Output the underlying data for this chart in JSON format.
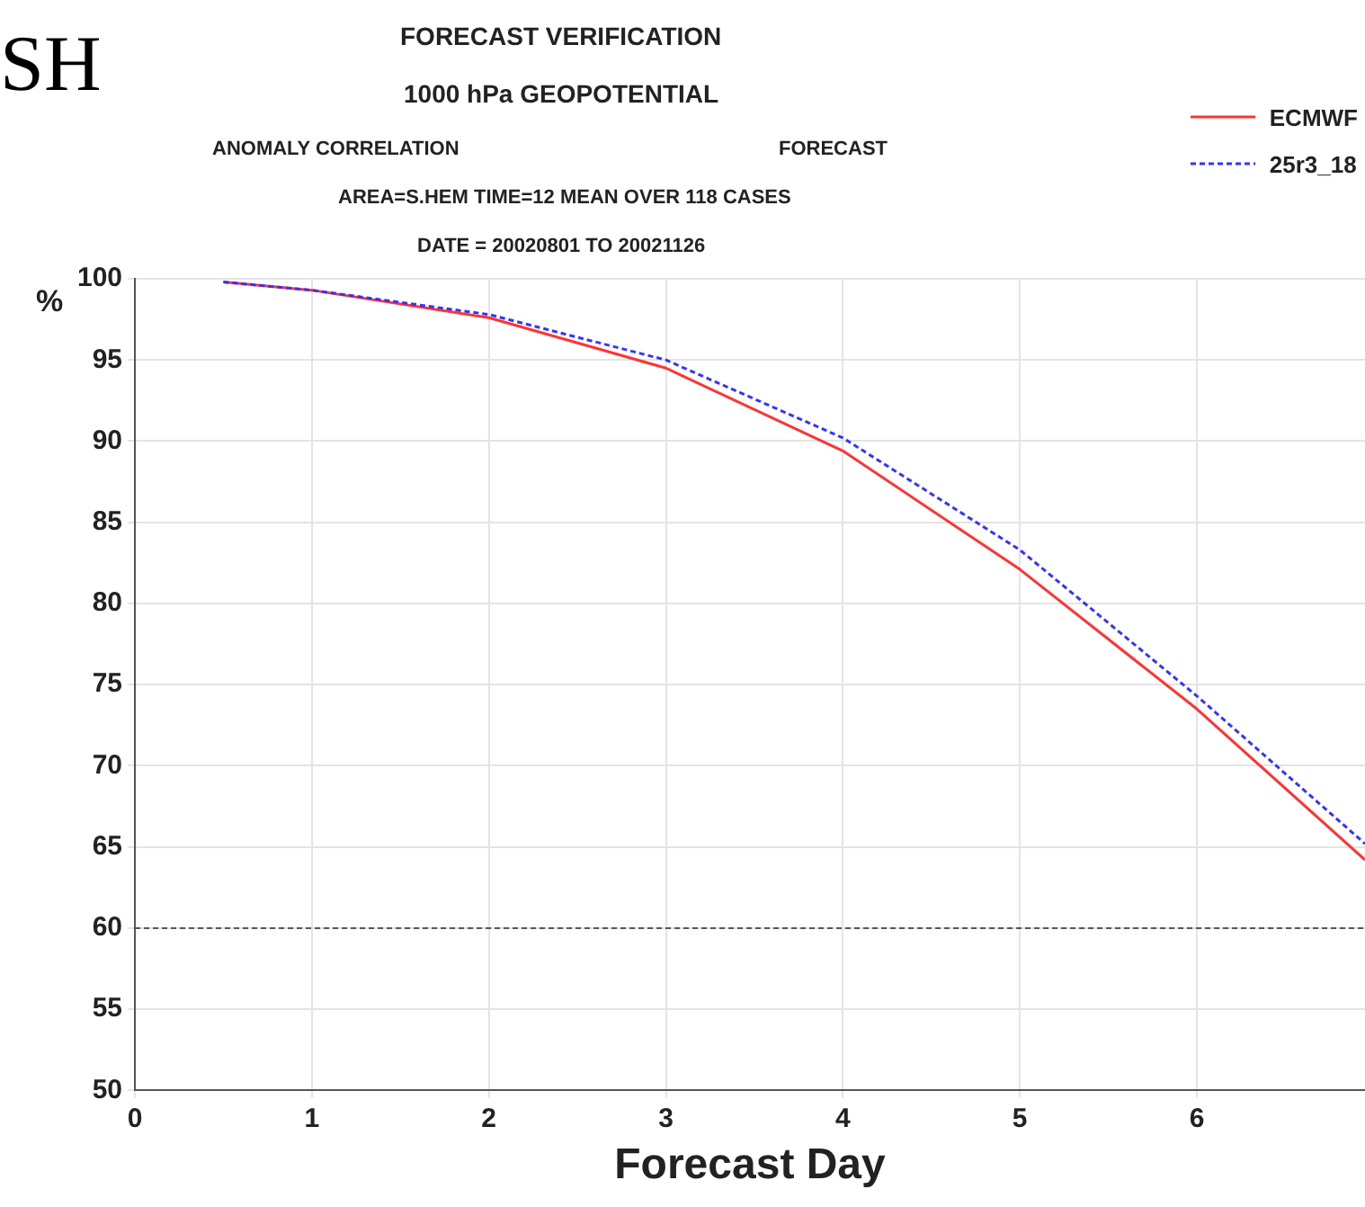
{
  "chart_data": {
    "type": "line",
    "title": "FORECAST VERIFICATION",
    "subtitle": "1000 hPa GEOPOTENTIAL",
    "annotations": [
      "SH",
      "ANOMALY CORRELATION",
      "FORECAST",
      "AREA=S.HEM   TIME=12   MEAN OVER 118 CASES",
      "DATE = 20020801 TO 20021126"
    ],
    "xlabel": "Forecast Day",
    "ylabel": "%",
    "x": [
      0.5,
      1,
      2,
      3,
      4,
      5,
      6,
      6.95
    ],
    "series": [
      {
        "name": "ECMWF",
        "color": "#ff3333",
        "line_style": "solid",
        "values": [
          99.8,
          99.3,
          97.6,
          94.5,
          89.4,
          82.1,
          73.5,
          64.2
        ]
      },
      {
        "name": "25r3_18",
        "color": "#3333ff",
        "line_style": "dashed",
        "values": [
          99.8,
          99.3,
          97.8,
          95.0,
          90.2,
          83.3,
          74.3,
          65.2
        ]
      }
    ],
    "xlim": [
      0,
      6.95
    ],
    "xticks": [
      0,
      1,
      2,
      3,
      4,
      5,
      6
    ],
    "ylim": [
      50,
      100
    ],
    "yticks": [
      50,
      55,
      60,
      65,
      70,
      75,
      80,
      85,
      90,
      95,
      100
    ],
    "ref_lines": [
      {
        "axis": "y",
        "value": 60,
        "color": "#555555",
        "line_style": "dashed"
      }
    ],
    "grid": true,
    "legend": "top right",
    "marker": "none"
  }
}
